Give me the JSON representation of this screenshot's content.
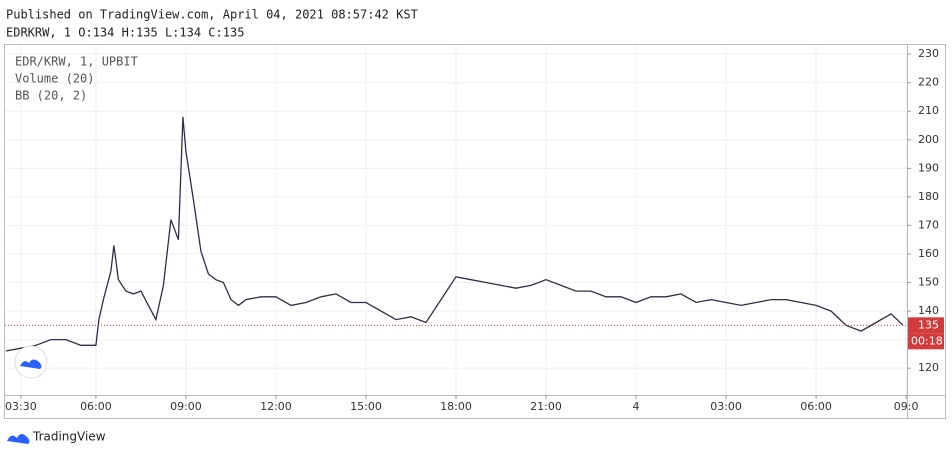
{
  "published": "Published on TradingView.com, April 04, 2021 08:57:42 KST",
  "ohlc": "EDRKRW, 1 O:134 H:135 L:134 C:135",
  "footer": "TradingView",
  "chart_data": {
    "type": "line",
    "legend": [
      "EDR/KRW, 1, UPBIT",
      "Volume (20)",
      "BB (20, 2)"
    ],
    "color": "#2d2f45",
    "grid": true,
    "last_price": 135,
    "last_price_color": "#d23b3b",
    "countdown": "00:18",
    "xlim": [
      2.97,
      33.03
    ],
    "ylim": [
      110.6,
      233.2
    ],
    "yticks": [
      120,
      130,
      140,
      150,
      160,
      170,
      180,
      190,
      200,
      210,
      220,
      230
    ],
    "xticks": [
      {
        "value": 3.5,
        "label": "03:30"
      },
      {
        "value": 6,
        "label": "06:00"
      },
      {
        "value": 9,
        "label": "09:00"
      },
      {
        "value": 12,
        "label": "12:00"
      },
      {
        "value": 15,
        "label": "15:00"
      },
      {
        "value": 18,
        "label": "18:00"
      },
      {
        "value": 21,
        "label": "21:00"
      },
      {
        "value": 24,
        "label": "4"
      },
      {
        "value": 27,
        "label": "03:00"
      },
      {
        "value": 30,
        "label": "06:00"
      },
      {
        "value": 33,
        "label": "09:0"
      }
    ],
    "x": [
      3,
      3.5,
      4,
      4.5,
      5,
      5.5,
      6,
      6.1,
      6.25,
      6.5,
      6.6,
      6.75,
      7,
      7.25,
      7.5,
      7.75,
      8,
      8.25,
      8.5,
      8.75,
      8.9,
      9,
      9.25,
      9.5,
      9.75,
      10,
      10.25,
      10.5,
      10.75,
      11,
      11.5,
      12,
      12.5,
      13,
      13.5,
      14,
      14.5,
      15,
      15.5,
      16,
      16.5,
      17,
      17.5,
      18,
      18.5,
      19,
      19.5,
      20,
      20.5,
      21,
      21.5,
      22,
      22.5,
      23,
      23.5,
      24,
      24.5,
      25,
      25.5,
      26,
      26.5,
      27,
      27.5,
      28,
      28.5,
      29,
      29.5,
      30,
      30.5,
      31,
      31.5,
      32,
      32.5,
      32.9
    ],
    "values": [
      126,
      127,
      128,
      130,
      130,
      128,
      128,
      137,
      144,
      154,
      163,
      151,
      147,
      146,
      147,
      142,
      137,
      149,
      172,
      165,
      208,
      196,
      179,
      161,
      153,
      151,
      150,
      144,
      142,
      144,
      145,
      145,
      142,
      143,
      145,
      146,
      143,
      143,
      140,
      137,
      138,
      136,
      144,
      152,
      151,
      150,
      149,
      148,
      149,
      151,
      149,
      147,
      147,
      145,
      145,
      143,
      145,
      145,
      146,
      143,
      144,
      143,
      142,
      143,
      144,
      144,
      143,
      142,
      140,
      135,
      133,
      136,
      139,
      135
    ]
  }
}
